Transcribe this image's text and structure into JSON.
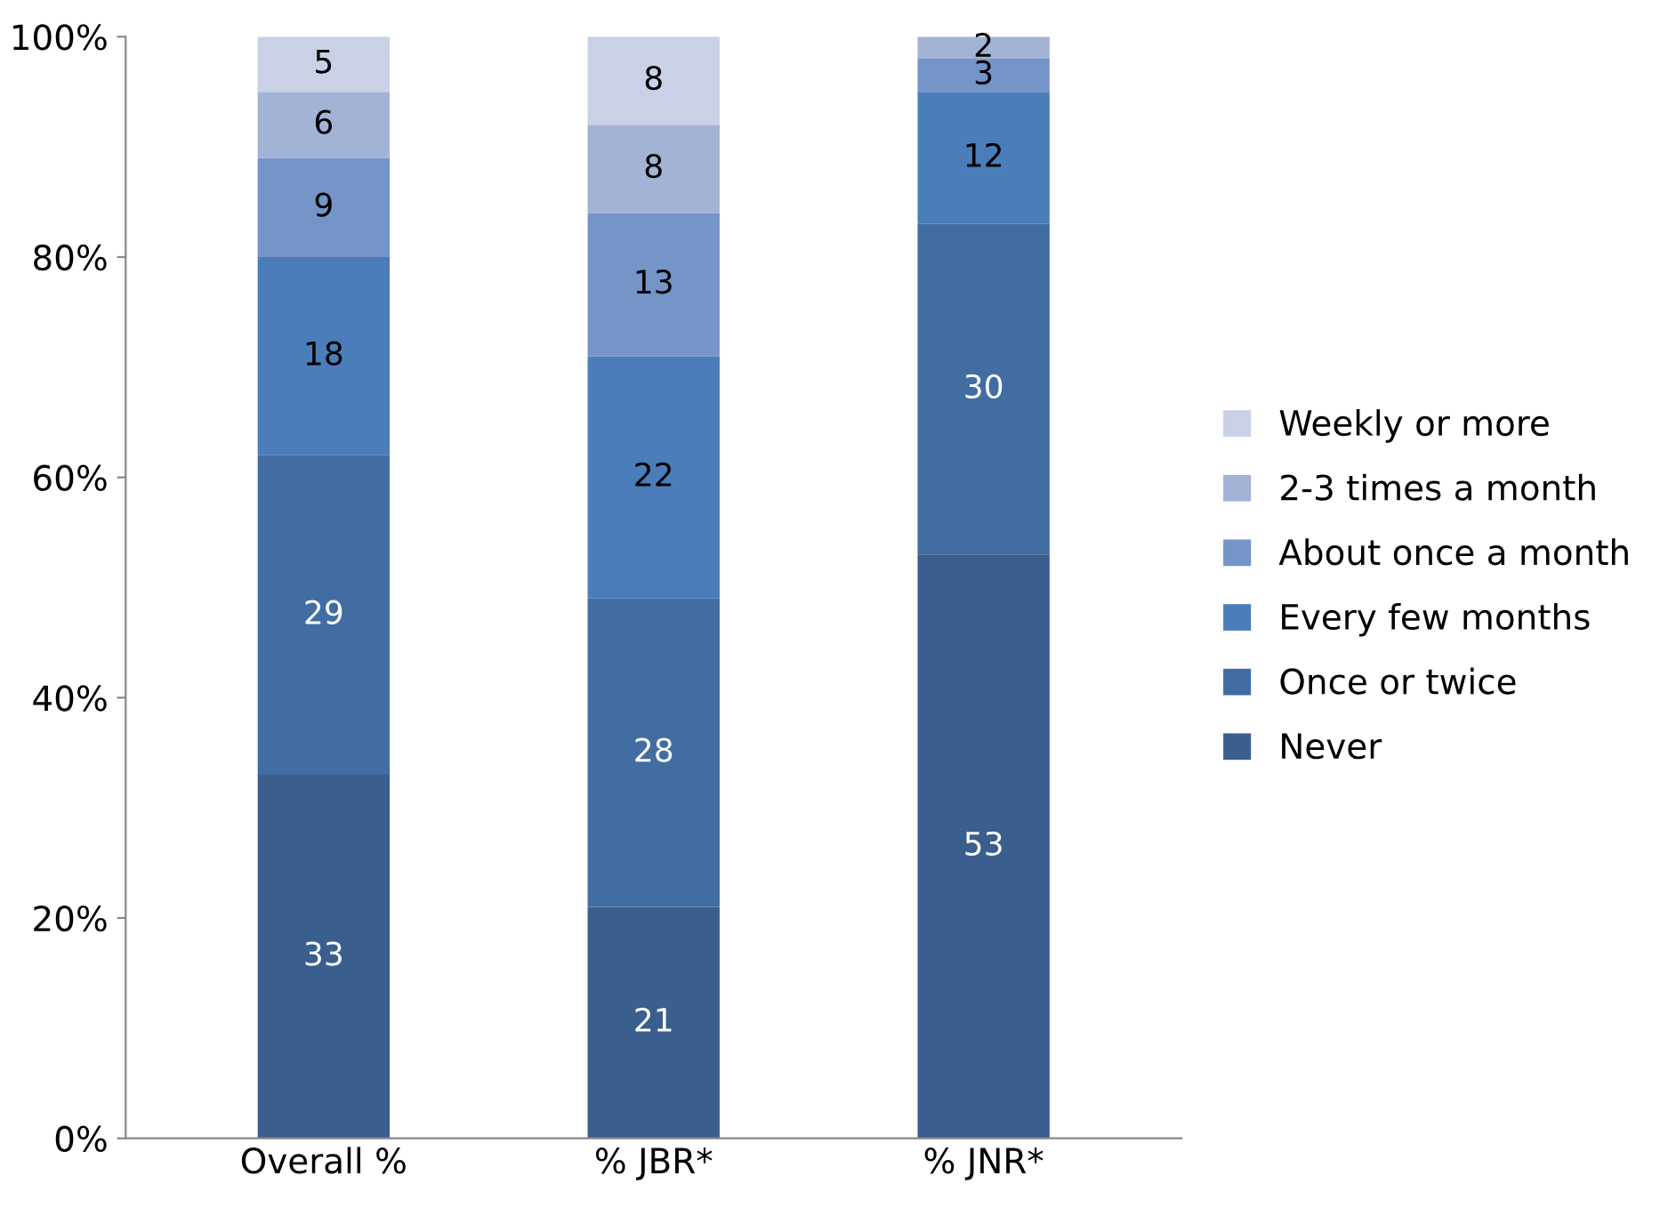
{
  "chart_data": {
    "type": "bar",
    "stacked": true,
    "categories": [
      "Overall %",
      "% JBR*",
      "% JNR*"
    ],
    "series": [
      {
        "name": "Never",
        "color": "#3a5f8e",
        "values": [
          33,
          21,
          53
        ]
      },
      {
        "name": "Once or twice",
        "color": "#416da3",
        "values": [
          29,
          28,
          30
        ]
      },
      {
        "name": "Every few months",
        "color": "#4a7dba",
        "values": [
          18,
          22,
          12
        ]
      },
      {
        "name": "About once a month",
        "color": "#7594c8",
        "values": [
          9,
          13,
          3
        ]
      },
      {
        "name": "2-3 times a month",
        "color": "#a2b3d6",
        "values": [
          6,
          8,
          2
        ]
      },
      {
        "name": "Weekly or more",
        "color": "#c9d1e6",
        "values": [
          5,
          8,
          null
        ]
      }
    ],
    "ylim": [
      0,
      100
    ],
    "yticks": [
      {
        "value": 0,
        "label": "0%"
      },
      {
        "value": 20,
        "label": "20%"
      },
      {
        "value": 40,
        "label": "40%"
      },
      {
        "value": 60,
        "label": "60%"
      },
      {
        "value": 80,
        "label": "80%"
      },
      {
        "value": 100,
        "label": "100%"
      }
    ],
    "data_labels": true,
    "legend": "right",
    "grid": false
  }
}
